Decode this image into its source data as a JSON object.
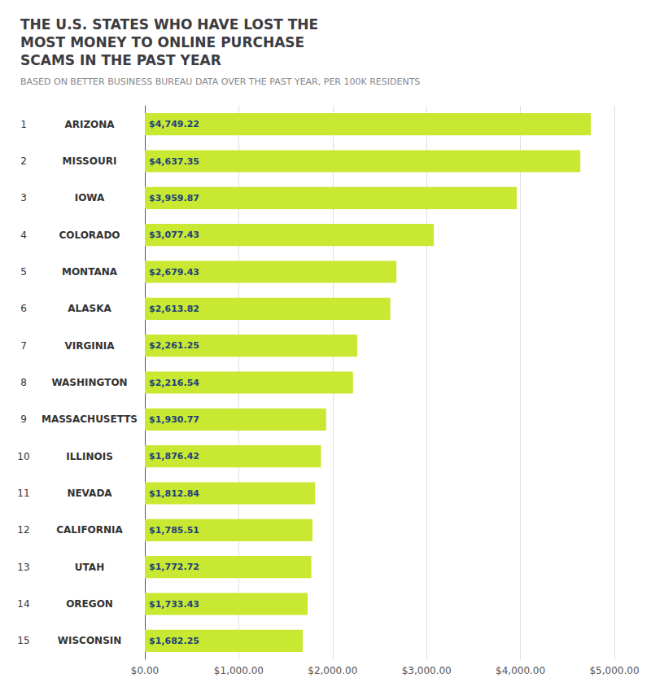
{
  "chart_data": {
    "type": "bar",
    "orientation": "horizontal",
    "title": "THE U.S. STATES WHO HAVE LOST THE\nMOST MONEY TO ONLINE PURCHASE\nSCAMS IN THE PAST YEAR",
    "subtitle": "BASED ON BETTER BUSINESS BUREAU DATA OVER THE PAST YEAR, PER 100K RESIDENTS",
    "categories": [
      "ARIZONA",
      "MISSOURI",
      "IOWA",
      "COLORADO",
      "MONTANA",
      "ALASKA",
      "VIRGINIA",
      "WASHINGTON",
      "MASSACHUSETTS",
      "ILLINOIS",
      "NEVADA",
      "CALIFORNIA",
      "UTAH",
      "OREGON",
      "WISCONSIN"
    ],
    "ranks": [
      1,
      2,
      3,
      4,
      5,
      6,
      7,
      8,
      9,
      10,
      11,
      12,
      13,
      14,
      15
    ],
    "values": [
      4749.22,
      4637.35,
      3959.87,
      3077.43,
      2679.43,
      2613.82,
      2261.25,
      2216.54,
      1930.77,
      1876.42,
      1812.84,
      1785.51,
      1772.72,
      1733.43,
      1682.25
    ],
    "value_labels": [
      "$4,749.22",
      "$4,637.35",
      "$3,959.87",
      "$3,077.43",
      "$2,679.43",
      "$2,613.82",
      "$2,261.25",
      "$2,216.54",
      "$1,930.77",
      "$1,876.42",
      "$1,812.84",
      "$1,785.51",
      "$1,772.72",
      "$1,733.43",
      "$1,682.25"
    ],
    "data_labels": true,
    "color": "#c8e832",
    "xlim": [
      0,
      5000
    ],
    "xticks": [
      {
        "value": 0,
        "label": "$0.00"
      },
      {
        "value": 1000,
        "label": "$1,000.00"
      },
      {
        "value": 2000,
        "label": "$2,000.00"
      },
      {
        "value": 3000,
        "label": "$3,000.00"
      },
      {
        "value": 4000,
        "label": "$4,000.00"
      },
      {
        "value": 5000,
        "label": "$5,000.00"
      }
    ],
    "grid": true
  }
}
